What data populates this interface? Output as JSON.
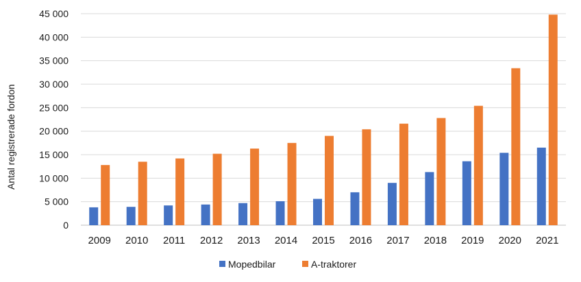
{
  "chart_data": {
    "type": "bar",
    "title": "",
    "xlabel": "",
    "ylabel": "Antal registrerade fordon",
    "ylim": [
      0,
      45000
    ],
    "yticks": [
      0,
      5000,
      10000,
      15000,
      20000,
      25000,
      30000,
      35000,
      40000,
      45000
    ],
    "ytick_labels": [
      "0",
      "5 000",
      "10 000",
      "15 000",
      "20 000",
      "25 000",
      "30 000",
      "35 000",
      "40 000",
      "45 000"
    ],
    "grid": true,
    "legend_position": "bottom",
    "categories": [
      "2009",
      "2010",
      "2011",
      "2012",
      "2013",
      "2014",
      "2015",
      "2016",
      "2017",
      "2018",
      "2019",
      "2020",
      "2021"
    ],
    "series": [
      {
        "name": "Mopedbilar",
        "color": "#4472C4",
        "values": [
          3800,
          3900,
          4200,
          4400,
          4700,
          5100,
          5600,
          7000,
          9000,
          11300,
          13600,
          15400,
          16500
        ]
      },
      {
        "name": "A-traktorer",
        "color": "#ED7D31",
        "values": [
          12800,
          13500,
          14200,
          15200,
          16300,
          17500,
          19000,
          20400,
          21600,
          22800,
          25400,
          33400,
          44800
        ]
      }
    ]
  }
}
